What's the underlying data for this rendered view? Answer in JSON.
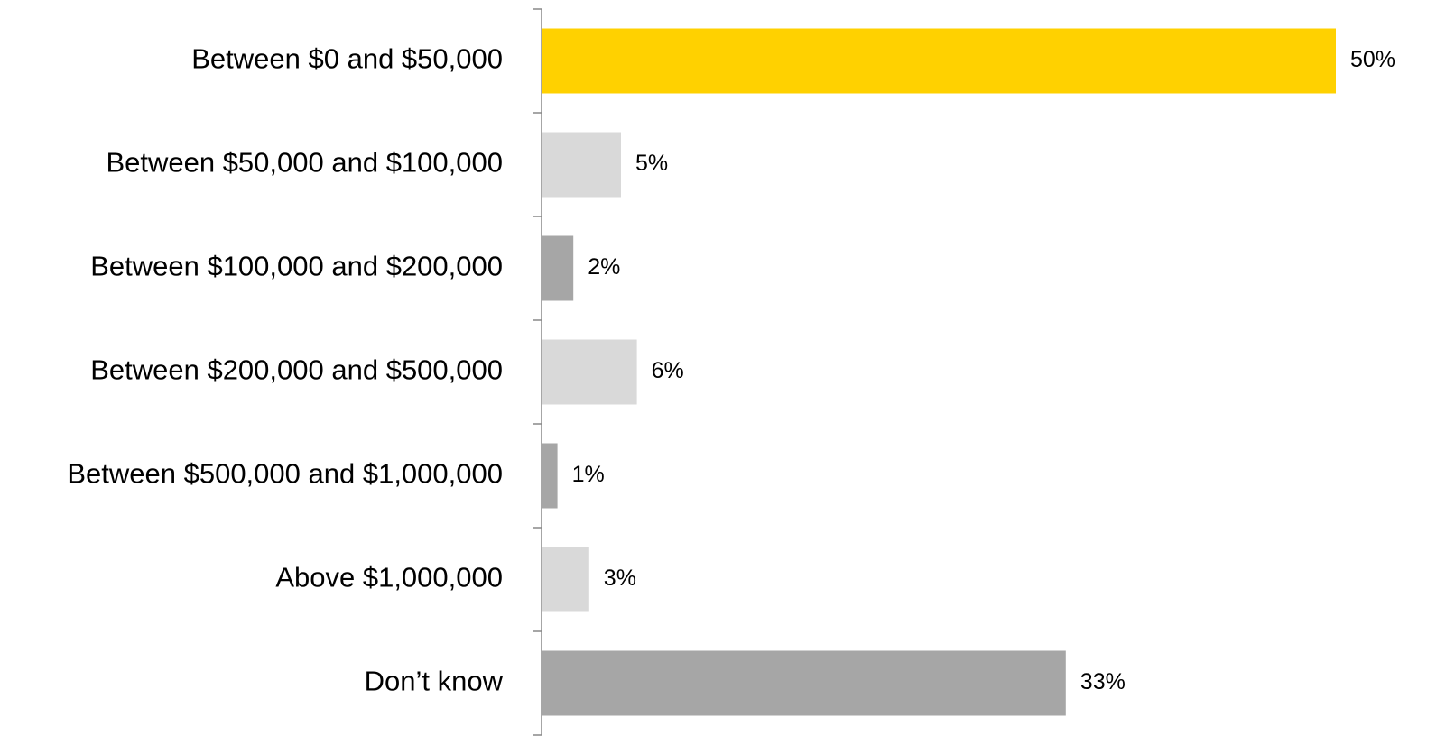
{
  "chart_data": {
    "type": "bar",
    "orientation": "horizontal",
    "categories": [
      "Between $0 and $50,000",
      "Between $50,000 and $100,000",
      "Between $100,000 and $200,000",
      "Between $200,000 and $500,000",
      "Between $500,000 and $1,000,000",
      "Above $1,000,000",
      "Don’t know"
    ],
    "values": [
      50,
      5,
      2,
      6,
      1,
      3,
      33
    ],
    "value_labels": [
      "50%",
      "5%",
      "2%",
      "6%",
      "1%",
      "3%",
      "33%"
    ],
    "colors": [
      "#FFD100",
      "#D9D9D9",
      "#A6A6A6",
      "#D9D9D9",
      "#A6A6A6",
      "#D9D9D9",
      "#A6A6A6"
    ]
  }
}
